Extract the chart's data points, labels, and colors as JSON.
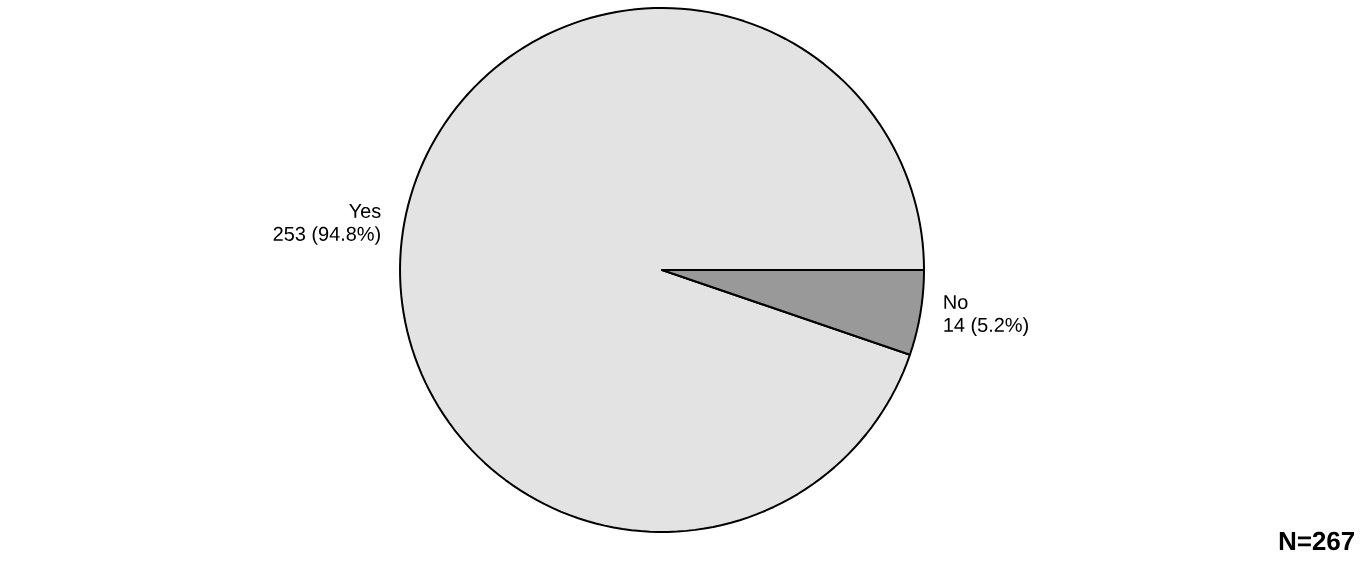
{
  "chart_data": {
    "type": "pie",
    "categories": [
      "Yes",
      "No"
    ],
    "values": [
      253,
      14
    ],
    "value_labels": [
      "253 (94.8%)",
      "14 (5.2%)"
    ],
    "colors": [
      "#e3e3e3",
      "#999999"
    ],
    "annotations": [
      "N=267"
    ]
  }
}
